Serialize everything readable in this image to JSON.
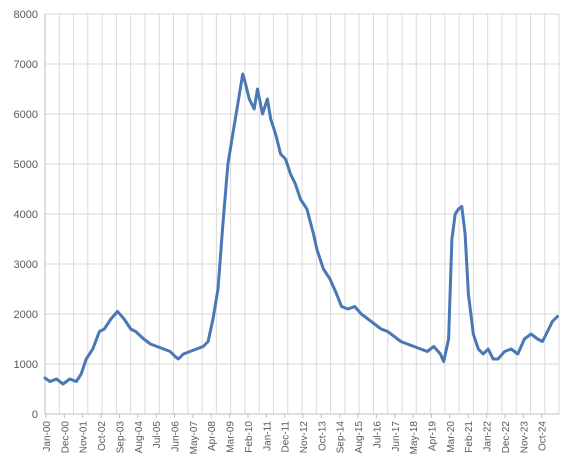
{
  "chart_data": {
    "type": "line",
    "title": "",
    "xlabel": "",
    "ylabel": "",
    "ylim": [
      0,
      8000
    ],
    "y_ticks": [
      0,
      1000,
      2000,
      3000,
      4000,
      5000,
      6000,
      7000,
      8000
    ],
    "x_range": [
      "2000-01",
      "2025-12"
    ],
    "x_tick_labels": [
      "Jan-00",
      "Dec-00",
      "Nov-01",
      "Oct-02",
      "Sep-03",
      "Aug-04",
      "Jul-05",
      "Jun-06",
      "May-07",
      "Apr-08",
      "Mar-09",
      "Feb-10",
      "Jan-11",
      "Dec-11",
      "Nov-12",
      "Oct-13",
      "Sep-14",
      "Aug-15",
      "Jul-16",
      "Jun-17",
      "May-18",
      "Apr-19",
      "Mar-20",
      "Feb-21",
      "Jan-22",
      "Dec-22",
      "Nov-23",
      "Oct-24"
    ],
    "grid": true,
    "colors": {
      "line": "#4a78b5",
      "grid": "#d9d9d9",
      "axis": "#bfbfbf",
      "text": "#595959"
    },
    "series": [
      {
        "x": [
          "2000-01",
          "2000-04",
          "2000-08",
          "2000-12",
          "2001-04",
          "2001-08",
          "2001-11",
          "2002-02",
          "2002-06",
          "2002-10",
          "2003-01",
          "2003-05",
          "2003-09",
          "2004-01",
          "2004-05",
          "2004-08",
          "2005-01",
          "2005-05",
          "2005-09",
          "2006-01",
          "2006-05",
          "2006-08",
          "2006-10",
          "2007-01",
          "2007-05",
          "2007-09",
          "2008-01",
          "2008-04",
          "2008-07",
          "2008-10",
          "2009-01",
          "2009-04",
          "2009-07",
          "2009-10",
          "2010-01",
          "2010-02",
          "2010-05",
          "2010-08",
          "2010-10",
          "2011-01",
          "2011-04",
          "2011-06",
          "2011-09",
          "2011-12",
          "2012-03",
          "2012-06",
          "2012-09",
          "2012-12",
          "2013-04",
          "2013-08",
          "2013-10",
          "2014-02",
          "2014-06",
          "2014-10",
          "2015-01",
          "2015-05",
          "2015-09",
          "2016-01",
          "2016-05",
          "2016-09",
          "2017-01",
          "2017-05",
          "2017-09",
          "2018-01",
          "2018-05",
          "2018-09",
          "2019-01",
          "2019-05",
          "2019-09",
          "2020-01",
          "2020-03",
          "2020-06",
          "2020-08",
          "2020-10",
          "2020-12",
          "2021-02",
          "2021-04",
          "2021-06",
          "2021-09",
          "2021-12",
          "2022-03",
          "2022-06",
          "2022-09",
          "2022-12",
          "2023-04",
          "2023-08",
          "2023-12",
          "2024-04",
          "2024-08",
          "2024-12",
          "2025-03",
          "2025-06",
          "2025-09",
          "2025-12"
        ],
        "values": [
          720,
          650,
          700,
          600,
          700,
          650,
          800,
          1100,
          1300,
          1650,
          1700,
          1900,
          2050,
          1900,
          1700,
          1650,
          1500,
          1400,
          1350,
          1300,
          1250,
          1150,
          1100,
          1200,
          1250,
          1300,
          1350,
          1450,
          1900,
          2500,
          3800,
          5000,
          5600,
          6200,
          6800,
          6700,
          6300,
          6100,
          6500,
          6000,
          6300,
          5900,
          5600,
          5200,
          5100,
          4800,
          4600,
          4300,
          4100,
          3600,
          3300,
          2900,
          2700,
          2400,
          2150,
          2100,
          2150,
          2000,
          1900,
          1800,
          1700,
          1650,
          1550,
          1450,
          1400,
          1350,
          1300,
          1250,
          1350,
          1200,
          1050,
          1500,
          3500,
          4000,
          4100,
          4150,
          3600,
          2400,
          1600,
          1300,
          1200,
          1300,
          1100,
          1100,
          1250,
          1300,
          1200,
          1500,
          1600,
          1500,
          1450,
          1650,
          1850,
          1950
        ]
      }
    ]
  }
}
